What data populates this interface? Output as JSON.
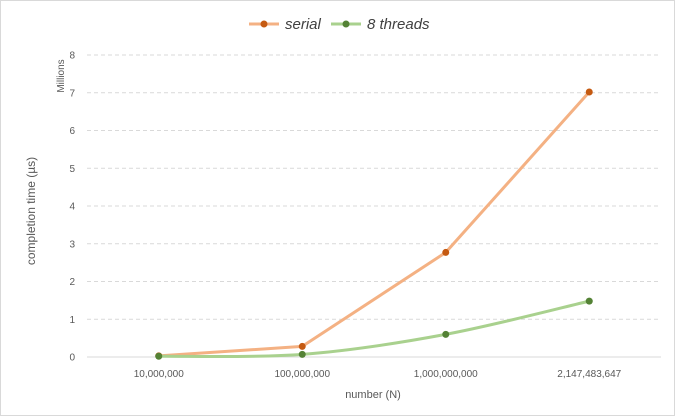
{
  "chart_data": {
    "type": "line",
    "categories": [
      "10,000,000",
      "100,000,000",
      "1,000,000,000",
      "2,147,483,647"
    ],
    "series": [
      {
        "name": "serial",
        "values": [
          0.03,
          0.28,
          2.77,
          7.02
        ],
        "color": "#f4b183",
        "marker_color": "#c55a11",
        "smooth": false
      },
      {
        "name": "8 threads",
        "values": [
          0.02,
          0.07,
          0.6,
          1.48
        ],
        "color": "#a9d18e",
        "marker_color": "#548235",
        "smooth": true
      }
    ],
    "y_ticks": [
      "0",
      "1",
      "2",
      "3",
      "4",
      "5",
      "6",
      "7",
      "8"
    ],
    "ylim": [
      0,
      8
    ],
    "xlabel": "number (N)",
    "ylabel": "completion time (µs)",
    "y_units_label": "Millions",
    "grid": true,
    "grid_style": "dashed",
    "legend_position": "top-center"
  }
}
